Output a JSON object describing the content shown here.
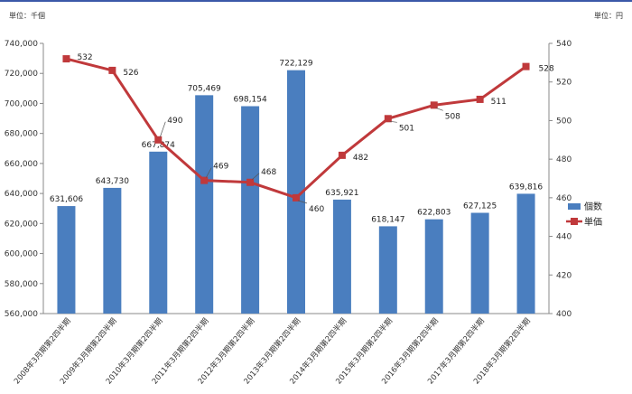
{
  "chart_data": {
    "type": "bar+line",
    "left_unit": "単位：千個",
    "right_unit": "単位：円",
    "categories": [
      "2008年3月期第2四半期",
      "2009年3月期第2四半期",
      "2010年3月期第2四半期",
      "2011年3月期第2四半期",
      "2012年3月期第2四半期",
      "2013年3月期第2四半期",
      "2014年3月期第2四半期",
      "2015年3月期第2四半期",
      "2016年3月期第2四半期",
      "2017年3月期第2四半期",
      "2018年3月期第2四半期"
    ],
    "series": [
      {
        "name": "個数",
        "type": "bar",
        "axis": "left",
        "color": "#4a7ebf",
        "values": [
          631606,
          643730,
          667874,
          705469,
          698154,
          722129,
          635921,
          618147,
          622803,
          627125,
          639816
        ],
        "labels": [
          "631,606",
          "643,730",
          "667,874",
          "705,469",
          "698,154",
          "722,129",
          "635,921",
          "618,147",
          "622,803",
          "627,125",
          "639,816"
        ]
      },
      {
        "name": "単価",
        "type": "line",
        "axis": "right",
        "color": "#c0393b",
        "values": [
          532,
          526,
          490,
          469,
          468,
          460,
          482,
          501,
          508,
          511,
          528
        ],
        "labels": [
          "532",
          "526",
          "490",
          "469",
          "468",
          "460",
          "482",
          "501",
          "508",
          "511",
          "528"
        ]
      }
    ],
    "left_axis": {
      "ylim": [
        560000,
        740000
      ],
      "ticks": [
        "560,000",
        "580,000",
        "600,000",
        "620,000",
        "640,000",
        "660,000",
        "680,000",
        "700,000",
        "720,000",
        "740,000"
      ]
    },
    "right_axis": {
      "ylim": [
        400,
        540
      ],
      "ticks": [
        "400",
        "420",
        "440",
        "460",
        "480",
        "500",
        "520",
        "540"
      ]
    },
    "grid": false,
    "legend_position": "right"
  }
}
